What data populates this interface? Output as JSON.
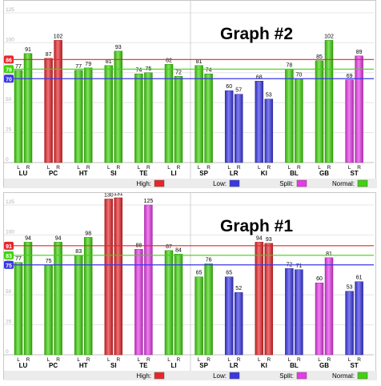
{
  "chart_data": [
    {
      "type": "bar",
      "title": "Graph #2",
      "ylim": [
        0,
        135
      ],
      "ytick_labels": [
        "0",
        "25",
        "50",
        "75",
        "100",
        "125"
      ],
      "meridians": [
        "LU",
        "PC",
        "HT",
        "SI",
        "TE",
        "LI",
        "SP",
        "LR",
        "KI",
        "BL",
        "GB",
        "ST"
      ],
      "sides": [
        "L",
        "R"
      ],
      "lines": [
        {
          "name": "High",
          "value": 86,
          "label": "86",
          "color": "#e8262a"
        },
        {
          "name": "Normal",
          "value": 78,
          "label": "78",
          "color": "#3fd40a"
        },
        {
          "name": "Low",
          "value": 70,
          "label": "70",
          "color": "#3a37e6"
        }
      ],
      "bars": [
        {
          "meridian": "LU",
          "side": "L",
          "value": 77,
          "label": "77",
          "status": "normal"
        },
        {
          "meridian": "LU",
          "side": "R",
          "value": 91,
          "label": "91",
          "status": "normal"
        },
        {
          "meridian": "PC",
          "side": "L",
          "value": 87,
          "label": "87",
          "status": "high"
        },
        {
          "meridian": "PC",
          "side": "R",
          "value": 102,
          "label": "102",
          "status": "high"
        },
        {
          "meridian": "HT",
          "side": "L",
          "value": 77,
          "label": "77",
          "status": "normal"
        },
        {
          "meridian": "HT",
          "side": "R",
          "value": 79,
          "label": "79",
          "status": "normal"
        },
        {
          "meridian": "SI",
          "side": "L",
          "value": 81,
          "label": "81",
          "status": "normal"
        },
        {
          "meridian": "SI",
          "side": "R",
          "value": 93,
          "label": "93",
          "status": "normal"
        },
        {
          "meridian": "TE",
          "side": "L",
          "value": 74,
          "label": "74",
          "status": "normal"
        },
        {
          "meridian": "TE",
          "side": "R",
          "value": 75,
          "label": "75",
          "status": "normal"
        },
        {
          "meridian": "LI",
          "side": "L",
          "value": 82,
          "label": "82",
          "status": "normal"
        },
        {
          "meridian": "LI",
          "side": "R",
          "value": 72,
          "label": "72",
          "status": "normal"
        },
        {
          "meridian": "SP",
          "side": "L",
          "value": 81,
          "label": "81",
          "status": "normal"
        },
        {
          "meridian": "SP",
          "side": "R",
          "value": 74,
          "label": "74",
          "status": "normal"
        },
        {
          "meridian": "LR",
          "side": "L",
          "value": 60,
          "label": "60",
          "status": "low"
        },
        {
          "meridian": "LR",
          "side": "R",
          "value": 57,
          "label": "57",
          "status": "low"
        },
        {
          "meridian": "KI",
          "side": "L",
          "value": 68,
          "label": "68",
          "status": "low"
        },
        {
          "meridian": "KI",
          "side": "R",
          "value": 53,
          "label": "53",
          "status": "low"
        },
        {
          "meridian": "BL",
          "side": "L",
          "value": 78,
          "label": "78",
          "status": "normal"
        },
        {
          "meridian": "BL",
          "side": "R",
          "value": 70,
          "label": "70",
          "status": "normal"
        },
        {
          "meridian": "GB",
          "side": "L",
          "value": 85,
          "label": "85",
          "status": "normal"
        },
        {
          "meridian": "GB",
          "side": "R",
          "value": 102,
          "label": "102",
          "status": "normal"
        },
        {
          "meridian": "ST",
          "side": "L",
          "value": 69,
          "label": "69",
          "status": "split"
        },
        {
          "meridian": "ST",
          "side": "R",
          "value": 89,
          "label": "89",
          "status": "split"
        }
      ],
      "legend": [
        {
          "label": "High:",
          "color": "#e8262a"
        },
        {
          "label": "Low:",
          "color": "#3a37e6"
        },
        {
          "label": "Split:",
          "color": "#e83ae8"
        },
        {
          "label": "Normal:",
          "color": "#3fd40a"
        }
      ]
    },
    {
      "type": "bar",
      "title": "Graph #1",
      "ylim": [
        0,
        135
      ],
      "ytick_labels": [
        "0",
        "25",
        "50",
        "75",
        "100",
        "125"
      ],
      "meridians": [
        "LU",
        "PC",
        "HT",
        "SI",
        "TE",
        "LI",
        "SP",
        "LR",
        "KI",
        "BL",
        "GB",
        "ST"
      ],
      "sides": [
        "L",
        "R"
      ],
      "lines": [
        {
          "name": "High",
          "value": 91,
          "label": "91",
          "color": "#e8262a"
        },
        {
          "name": "Normal",
          "value": 83,
          "label": "83",
          "color": "#3fd40a"
        },
        {
          "name": "Low",
          "value": 75,
          "label": "75",
          "color": "#3a37e6"
        }
      ],
      "bars": [
        {
          "meridian": "LU",
          "side": "L",
          "value": 77,
          "label": "77",
          "status": "normal"
        },
        {
          "meridian": "LU",
          "side": "R",
          "value": 94,
          "label": "94",
          "status": "normal"
        },
        {
          "meridian": "PC",
          "side": "L",
          "value": 75,
          "label": "75",
          "status": "normal"
        },
        {
          "meridian": "PC",
          "side": "R",
          "value": 94,
          "label": "94",
          "status": "normal"
        },
        {
          "meridian": "HT",
          "side": "L",
          "value": 83,
          "label": "83",
          "status": "normal"
        },
        {
          "meridian": "HT",
          "side": "R",
          "value": 98,
          "label": "98",
          "status": "normal"
        },
        {
          "meridian": "SI",
          "side": "L",
          "value": 130,
          "label": "130",
          "status": "high"
        },
        {
          "meridian": "SI",
          "side": "R",
          "value": 131,
          "label": "131",
          "status": "high"
        },
        {
          "meridian": "TE",
          "side": "L",
          "value": 88,
          "label": "88",
          "status": "split"
        },
        {
          "meridian": "TE",
          "side": "R",
          "value": 125,
          "label": "125",
          "status": "split"
        },
        {
          "meridian": "LI",
          "side": "L",
          "value": 87,
          "label": "87",
          "status": "normal"
        },
        {
          "meridian": "LI",
          "side": "R",
          "value": 84,
          "label": "84",
          "status": "normal"
        },
        {
          "meridian": "SP",
          "side": "L",
          "value": 65,
          "label": "65",
          "status": "normal"
        },
        {
          "meridian": "SP",
          "side": "R",
          "value": 76,
          "label": "76",
          "status": "normal"
        },
        {
          "meridian": "LR",
          "side": "L",
          "value": 65,
          "label": "65",
          "status": "low"
        },
        {
          "meridian": "LR",
          "side": "R",
          "value": 52,
          "label": "52",
          "status": "low"
        },
        {
          "meridian": "KI",
          "side": "L",
          "value": 94,
          "label": "94",
          "status": "high"
        },
        {
          "meridian": "KI",
          "side": "R",
          "value": 93,
          "label": "93",
          "status": "high"
        },
        {
          "meridian": "BL",
          "side": "L",
          "value": 72,
          "label": "72",
          "status": "low"
        },
        {
          "meridian": "BL",
          "side": "R",
          "value": 71,
          "label": "71",
          "status": "low"
        },
        {
          "meridian": "GB",
          "side": "L",
          "value": 60,
          "label": "60",
          "status": "split"
        },
        {
          "meridian": "GB",
          "side": "R",
          "value": 81,
          "label": "81",
          "status": "split"
        },
        {
          "meridian": "ST",
          "side": "L",
          "value": 53,
          "label": "53",
          "status": "low"
        },
        {
          "meridian": "ST",
          "side": "R",
          "value": 61,
          "label": "61",
          "status": "low"
        }
      ],
      "legend": [
        {
          "label": "High:",
          "color": "#e8262a"
        },
        {
          "label": "Low:",
          "color": "#3a37e6"
        },
        {
          "label": "Split:",
          "color": "#e83ae8"
        },
        {
          "label": "Normal:",
          "color": "#3fd40a"
        }
      ]
    }
  ],
  "status_colors": {
    "high": "#e8262a",
    "low": "#3a37e6",
    "split": "#e83ae8",
    "normal": "#3fd40a"
  }
}
